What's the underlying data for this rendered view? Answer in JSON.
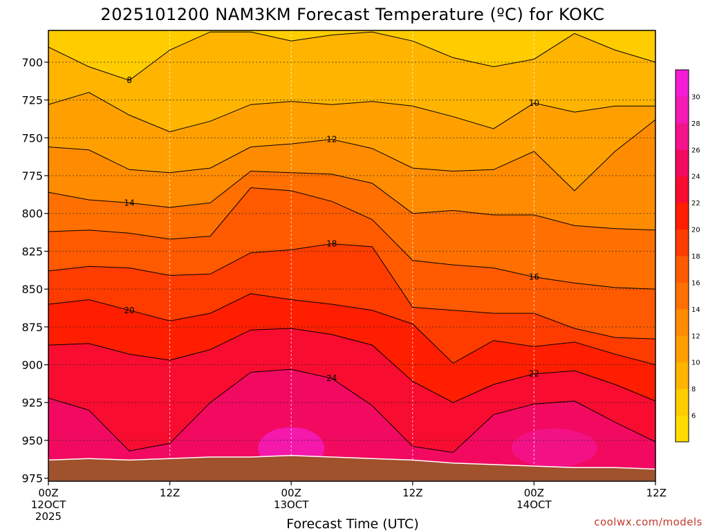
{
  "chart_data": {
    "type": "heatmap",
    "title": "2025101200 NAM3KM Forecast Temperature (ºC) for KOKC",
    "xlabel": "Forecast Time (UTC)",
    "ylabel": "",
    "credit": "coolwx.com/models",
    "x_ticks": [
      {
        "hours": 0,
        "line1": "00Z",
        "line2": "12OCT",
        "line3": "2025"
      },
      {
        "hours": 12,
        "line1": "12Z",
        "line2": "",
        "line3": ""
      },
      {
        "hours": 24,
        "line1": "00Z",
        "line2": "13OCT",
        "line3": ""
      },
      {
        "hours": 36,
        "line1": "12Z",
        "line2": "",
        "line3": ""
      },
      {
        "hours": 48,
        "line1": "00Z",
        "line2": "14OCT",
        "line3": ""
      },
      {
        "hours": 60,
        "line1": "12Z",
        "line2": "",
        "line3": ""
      }
    ],
    "x_range_hours": [
      0,
      60
    ],
    "y_axis": "pressure (hPa)",
    "y_range": [
      977,
      679
    ],
    "y_ticks": [
      700,
      725,
      750,
      775,
      800,
      825,
      850,
      875,
      900,
      925,
      950,
      975
    ],
    "colorbar": {
      "levels": [
        4,
        6,
        8,
        10,
        12,
        14,
        16,
        18,
        20,
        22,
        24,
        26,
        28,
        30,
        32
      ],
      "tick_labels": [
        "6",
        "8",
        "10",
        "12",
        "14",
        "16",
        "18",
        "20",
        "22",
        "24",
        "26",
        "28",
        "30"
      ],
      "colors": [
        "#ffdd00",
        "#ffcc00",
        "#ffb400",
        "#ffa000",
        "#ff8c00",
        "#ff7000",
        "#ff5a00",
        "#ff3c00",
        "#ff1e00",
        "#f80c30",
        "#f20a60",
        "#f3138b",
        "#f41ab4",
        "#f31cd5"
      ]
    },
    "isotherms": [
      {
        "value": 8,
        "pressure": [
          690,
          703,
          712,
          692,
          680,
          680,
          686,
          682,
          680,
          686,
          697,
          703,
          698,
          681,
          692,
          700
        ],
        "label": "8"
      },
      {
        "value": 10,
        "pressure": [
          728,
          720,
          735,
          746,
          739,
          728,
          726,
          728,
          726,
          729,
          736,
          744,
          727,
          733,
          729,
          729
        ],
        "label": "10"
      },
      {
        "value": 12,
        "pressure": [
          756,
          758,
          771,
          773,
          770,
          756,
          754,
          751,
          757,
          770,
          772,
          771,
          759,
          785,
          759,
          738
        ],
        "label": "12"
      },
      {
        "value": 14,
        "pressure": [
          786,
          791,
          793,
          796,
          793,
          772,
          773,
          774,
          780,
          800,
          798,
          801,
          801,
          808,
          810,
          811
        ],
        "label": "14"
      },
      {
        "value": 16,
        "pressure": [
          812,
          811,
          813,
          817,
          815,
          783,
          785,
          792,
          804,
          831,
          834,
          836,
          842,
          846,
          849,
          850
        ],
        "label": "16"
      },
      {
        "value": 18,
        "pressure": [
          838,
          835,
          836,
          841,
          840,
          826,
          824,
          820,
          822,
          862,
          864,
          866,
          866,
          876,
          882,
          883
        ],
        "label": "18"
      },
      {
        "value": 20,
        "pressure": [
          860,
          857,
          864,
          871,
          866,
          853,
          857,
          860,
          864,
          873,
          899,
          884,
          888,
          885,
          893,
          900
        ],
        "label": "20"
      },
      {
        "value": 22,
        "pressure": [
          887,
          886,
          893,
          897,
          890,
          877,
          876,
          880,
          887,
          911,
          925,
          913,
          906,
          904,
          913,
          924
        ],
        "label": "22"
      },
      {
        "value": 24,
        "pressure": [
          922,
          930,
          957,
          952,
          925,
          905,
          903,
          909,
          927,
          954,
          958,
          933,
          926,
          924,
          938,
          951
        ],
        "label": "24"
      }
    ],
    "surface_pressure": [
      963,
      962,
      963,
      962,
      961,
      961,
      960,
      961,
      962,
      963,
      965,
      966,
      967,
      968,
      968,
      969
    ],
    "grid": true
  }
}
